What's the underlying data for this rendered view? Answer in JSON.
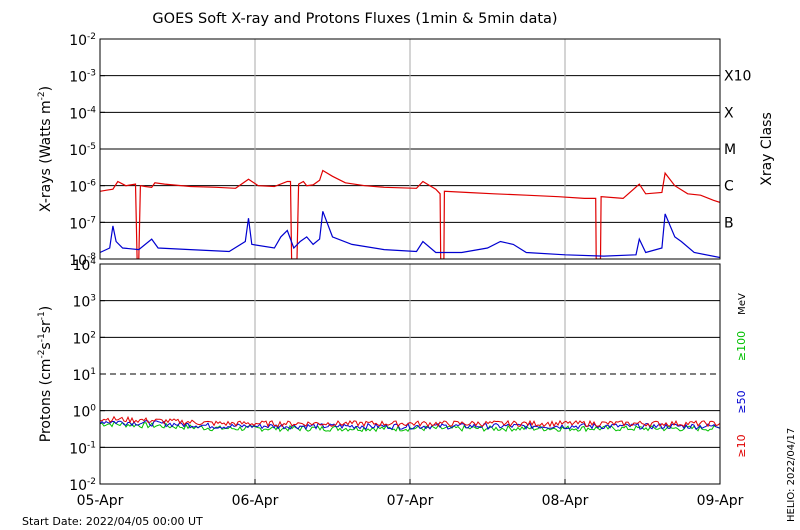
{
  "title": "GOES Soft X-ray and Protons Fluxes   (1min & 5min data)",
  "footer": {
    "start_date": "Start Date: 2022/04/05 00:00 UT",
    "credit": "HELIO: 2022/04/17"
  },
  "chart_data": [
    {
      "type": "line",
      "name": "xray-panel",
      "ylabel_base": "X-rays (Watts m",
      "ylabel_exp": "-2",
      "ylabel_end": ")",
      "yscale": "log",
      "ylim": [
        1e-08,
        0.01
      ],
      "y_ticks": [
        {
          "base": "10",
          "exp": "-2",
          "value": 0.01
        },
        {
          "base": "10",
          "exp": "-3",
          "value": 0.001
        },
        {
          "base": "10",
          "exp": "-4",
          "value": 0.0001
        },
        {
          "base": "10",
          "exp": "-5",
          "value": 1e-05
        },
        {
          "base": "10",
          "exp": "-6",
          "value": 1e-06
        },
        {
          "base": "10",
          "exp": "-7",
          "value": 1e-07
        },
        {
          "base": "10",
          "exp": "-8",
          "value": 1e-08
        }
      ],
      "right_axis_title": "Xray Class",
      "class_labels": [
        {
          "label": "X10",
          "value": 0.001
        },
        {
          "label": "X",
          "value": 0.0001
        },
        {
          "label": "M",
          "value": 1e-05
        },
        {
          "label": "C",
          "value": 1e-06
        },
        {
          "label": "B",
          "value": 1e-07
        }
      ],
      "xlim": [
        "2022-04-05 00:00",
        "2022-04-09 00:00"
      ],
      "series": [
        {
          "name": "",
          "color": "#e00000",
          "points": [
            [
              "2022-04-05 00:00",
              7e-07
            ],
            [
              "2022-04-05 01:00",
              7.5e-07
            ],
            [
              "2022-04-05 02:00",
              8e-07
            ],
            [
              "2022-04-05 02:45",
              1.3e-06
            ],
            [
              "2022-04-05 04:00",
              1e-06
            ],
            [
              "2022-04-05 05:30",
              1.1e-06
            ],
            [
              "2022-04-05 05:45",
              1e-08
            ],
            [
              "2022-04-05 06:00",
              1e-08
            ],
            [
              "2022-04-05 06:15",
              1e-06
            ],
            [
              "2022-04-05 07:00",
              9.5e-07
            ],
            [
              "2022-04-05 08:00",
              9e-07
            ],
            [
              "2022-04-05 08:30",
              1.2e-06
            ],
            [
              "2022-04-05 10:00",
              1.1e-06
            ],
            [
              "2022-04-05 14:00",
              9.5e-07
            ],
            [
              "2022-04-05 18:00",
              9e-07
            ],
            [
              "2022-04-05 21:00",
              8.5e-07
            ],
            [
              "2022-04-05 23:00",
              1.5e-06
            ],
            [
              "2022-04-06 00:30",
              1e-06
            ],
            [
              "2022-04-06 03:00",
              9.5e-07
            ],
            [
              "2022-04-06 05:00",
              1.3e-06
            ],
            [
              "2022-04-06 05:30",
              1.3e-06
            ],
            [
              "2022-04-06 05:40",
              1e-08
            ],
            [
              "2022-04-06 06:30",
              1e-08
            ],
            [
              "2022-04-06 06:45",
              1.1e-06
            ],
            [
              "2022-04-06 07:30",
              1.3e-06
            ],
            [
              "2022-04-06 08:00",
              1e-06
            ],
            [
              "2022-04-06 09:00",
              1.05e-06
            ],
            [
              "2022-04-06 10:00",
              1.4e-06
            ],
            [
              "2022-04-06 10:30",
              2.6e-06
            ],
            [
              "2022-04-06 12:00",
              1.8e-06
            ],
            [
              "2022-04-06 14:00",
              1.2e-06
            ],
            [
              "2022-04-06 17:00",
              1e-06
            ],
            [
              "2022-04-06 20:00",
              9e-07
            ],
            [
              "2022-04-07 01:00",
              8.5e-07
            ],
            [
              "2022-04-07 02:00",
              1.3e-06
            ],
            [
              "2022-04-07 04:00",
              8e-07
            ],
            [
              "2022-04-07 04:40",
              6e-07
            ],
            [
              "2022-04-07 04:45",
              1e-08
            ],
            [
              "2022-04-07 05:15",
              1e-08
            ],
            [
              "2022-04-07 05:20",
              7e-07
            ],
            [
              "2022-04-07 09:00",
              6.5e-07
            ],
            [
              "2022-04-07 13:00",
              6e-07
            ],
            [
              "2022-04-07 18:00",
              5.5e-07
            ],
            [
              "2022-04-07 23:00",
              5e-07
            ],
            [
              "2022-04-08 03:00",
              4.5e-07
            ],
            [
              "2022-04-08 04:45",
              4.5e-07
            ],
            [
              "2022-04-08 04:50",
              1e-08
            ],
            [
              "2022-04-08 05:30",
              1e-08
            ],
            [
              "2022-04-08 05:35",
              5e-07
            ],
            [
              "2022-04-08 09:00",
              4.5e-07
            ],
            [
              "2022-04-08 11:30",
              1.1e-06
            ],
            [
              "2022-04-08 12:30",
              6e-07
            ],
            [
              "2022-04-08 15:00",
              6.5e-07
            ],
            [
              "2022-04-08 15:30",
              2.2e-06
            ],
            [
              "2022-04-08 17:00",
              1e-06
            ],
            [
              "2022-04-08 19:00",
              6e-07
            ],
            [
              "2022-04-08 21:00",
              5.5e-07
            ],
            [
              "2022-04-08 23:00",
              4e-07
            ],
            [
              "2022-04-09 00:00",
              3.5e-07
            ]
          ]
        },
        {
          "name": "",
          "color": "#0000d0",
          "points": [
            [
              "2022-04-05 00:00",
              1.5e-08
            ],
            [
              "2022-04-05 01:30",
              2e-08
            ],
            [
              "2022-04-05 02:00",
              8e-08
            ],
            [
              "2022-04-05 02:30",
              3e-08
            ],
            [
              "2022-04-05 03:30",
              2e-08
            ],
            [
              "2022-04-05 06:00",
              1.8e-08
            ],
            [
              "2022-04-05 08:00",
              3.5e-08
            ],
            [
              "2022-04-05 09:00",
              2e-08
            ],
            [
              "2022-04-05 14:00",
              1.8e-08
            ],
            [
              "2022-04-05 20:00",
              1.6e-08
            ],
            [
              "2022-04-05 22:30",
              3e-08
            ],
            [
              "2022-04-05 23:00",
              1.3e-07
            ],
            [
              "2022-04-05 23:30",
              2.5e-08
            ],
            [
              "2022-04-06 03:00",
              2e-08
            ],
            [
              "2022-04-06 04:00",
              4e-08
            ],
            [
              "2022-04-06 05:00",
              6e-08
            ],
            [
              "2022-04-06 06:00",
              2e-08
            ],
            [
              "2022-04-06 07:00",
              3e-08
            ],
            [
              "2022-04-06 08:00",
              4e-08
            ],
            [
              "2022-04-06 09:00",
              2.5e-08
            ],
            [
              "2022-04-06 10:00",
              3.5e-08
            ],
            [
              "2022-04-06 10:30",
              2e-07
            ],
            [
              "2022-04-06 12:00",
              4e-08
            ],
            [
              "2022-04-06 15:00",
              2.5e-08
            ],
            [
              "2022-04-06 20:00",
              1.8e-08
            ],
            [
              "2022-04-07 01:00",
              1.6e-08
            ],
            [
              "2022-04-07 02:00",
              3e-08
            ],
            [
              "2022-04-07 04:00",
              1.5e-08
            ],
            [
              "2022-04-07 08:00",
              1.5e-08
            ],
            [
              "2022-04-07 12:00",
              2e-08
            ],
            [
              "2022-04-07 14:00",
              3e-08
            ],
            [
              "2022-04-07 16:00",
              2.5e-08
            ],
            [
              "2022-04-07 18:00",
              1.5e-08
            ],
            [
              "2022-04-08 00:00",
              1.3e-08
            ],
            [
              "2022-04-08 06:00",
              1.2e-08
            ],
            [
              "2022-04-08 11:00",
              1.3e-08
            ],
            [
              "2022-04-08 11:30",
              3.5e-08
            ],
            [
              "2022-04-08 12:30",
              1.5e-08
            ],
            [
              "2022-04-08 15:00",
              2e-08
            ],
            [
              "2022-04-08 15:30",
              1.7e-07
            ],
            [
              "2022-04-08 17:00",
              4e-08
            ],
            [
              "2022-04-08 18:00",
              3e-08
            ],
            [
              "2022-04-08 20:00",
              1.5e-08
            ],
            [
              "2022-04-09 00:00",
              1.1e-08
            ]
          ]
        }
      ]
    },
    {
      "type": "line",
      "name": "proton-panel",
      "ylabel_pre": "Protons (cm",
      "ylabel_e1": "-2",
      "ylabel_mid": "s",
      "ylabel_e2": "-1",
      "ylabel_mid2": "sr",
      "ylabel_e3": "-1",
      "ylabel_end": ")",
      "yscale": "log",
      "ylim": [
        0.01,
        10000
      ],
      "y_ticks": [
        {
          "base": "10",
          "exp": "4",
          "value": 10000
        },
        {
          "base": "10",
          "exp": "3",
          "value": 1000
        },
        {
          "base": "10",
          "exp": "2",
          "value": 100
        },
        {
          "base": "10",
          "exp": "1",
          "value": 10
        },
        {
          "base": "10",
          "exp": "0",
          "value": 1
        },
        {
          "base": "10",
          "exp": "-1",
          "value": 0.1
        },
        {
          "base": "10",
          "exp": "-2",
          "value": 0.01
        }
      ],
      "x_tick_labels": [
        "05-Apr",
        "06-Apr",
        "07-Apr",
        "08-Apr",
        "09-Apr"
      ],
      "threshold_value": 10,
      "unit_label": "MeV",
      "series": [
        {
          "name": "≥100",
          "color": "#00c000",
          "level": 0.33
        },
        {
          "name": "≥50",
          "color": "#0000d0",
          "level": 0.38
        },
        {
          "name": "≥10",
          "color": "#e00000",
          "level": 0.45
        }
      ]
    }
  ]
}
